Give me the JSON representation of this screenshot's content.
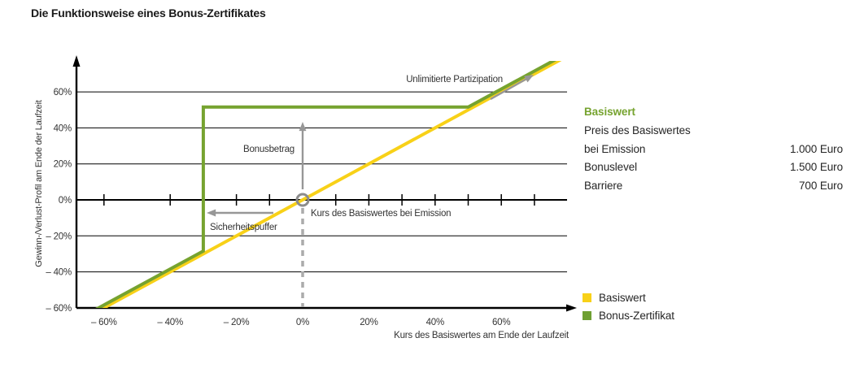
{
  "title": "Die Funktionsweise eines Bonus-Zertifikates",
  "colors": {
    "green": "#76A32F",
    "yellow": "#F8D118",
    "annotation_gray": "#979797",
    "dash_gray": "#ABABAB",
    "marker_gray": "#8C8C8C",
    "axis_black": "#000000",
    "text": "#333333"
  },
  "info_panel": {
    "heading": "Basiswert",
    "rows": [
      {
        "label": "Preis des Basiswertes",
        "value": ""
      },
      {
        "label": "bei Emission",
        "value": "1.000 Euro"
      },
      {
        "label": "Bonuslevel",
        "value": "1.500 Euro"
      },
      {
        "label": "Barriere",
        "value": "700 Euro"
      }
    ]
  },
  "legend": [
    {
      "label": "Basiswert",
      "color": "#F8D118"
    },
    {
      "label": "Bonus-Zertifikat",
      "color": "#6FA033"
    }
  ],
  "chart_data": {
    "type": "line",
    "title": "Die Funktionsweise eines Bonus-Zertifikates",
    "xlabel": "Kurs des Basiswertes am Ende der Laufzeit",
    "ylabel": "Gewinn-/Verlust-Profil am Ende der Laufzeit",
    "xlim": [
      -68,
      80
    ],
    "ylim": [
      -60,
      73
    ],
    "grid": "horizontal",
    "legend_position": "right-bottom",
    "x_ticks": [
      -60,
      -40,
      -20,
      0,
      20,
      40,
      60
    ],
    "x_tick_labels": [
      "– 60%",
      "– 40%",
      "– 20%",
      "0%",
      "20%",
      "40%",
      "60%"
    ],
    "y_ticks": [
      60,
      40,
      20,
      0,
      -20,
      -40,
      -60
    ],
    "y_tick_labels": [
      "60%",
      "40%",
      "20%",
      "0%",
      "– 20%",
      "– 40%",
      "– 60%"
    ],
    "zero_line_minor_ticks": [
      -60,
      -40,
      -30,
      -20,
      -10,
      10,
      20,
      30,
      40,
      50,
      60,
      70
    ],
    "series": [
      {
        "name": "Basiswert",
        "color": "#F8D118",
        "points": [
          [
            -70,
            -70
          ],
          [
            0,
            0
          ],
          [
            80,
            80
          ]
        ]
      },
      {
        "name": "Bonus-Zertifikat",
        "color": "#76A32F",
        "points": [
          [
            -70,
            -70
          ],
          [
            -30,
            -30
          ],
          [
            -30,
            50
          ],
          [
            50,
            50
          ],
          [
            80,
            80
          ]
        ]
      }
    ],
    "key_values": {
      "barrier_pct": -30,
      "bonus_level_pct": 50,
      "emission_price_pct": 0
    },
    "annotations": {
      "unlimited_participation": "Unlimitierte Partizipation",
      "bonus_amount": "Bonusbetrag",
      "safety_buffer": "Sicherheitspuffer",
      "emission_price": "Kurs des Basiswertes bei Emission"
    }
  }
}
